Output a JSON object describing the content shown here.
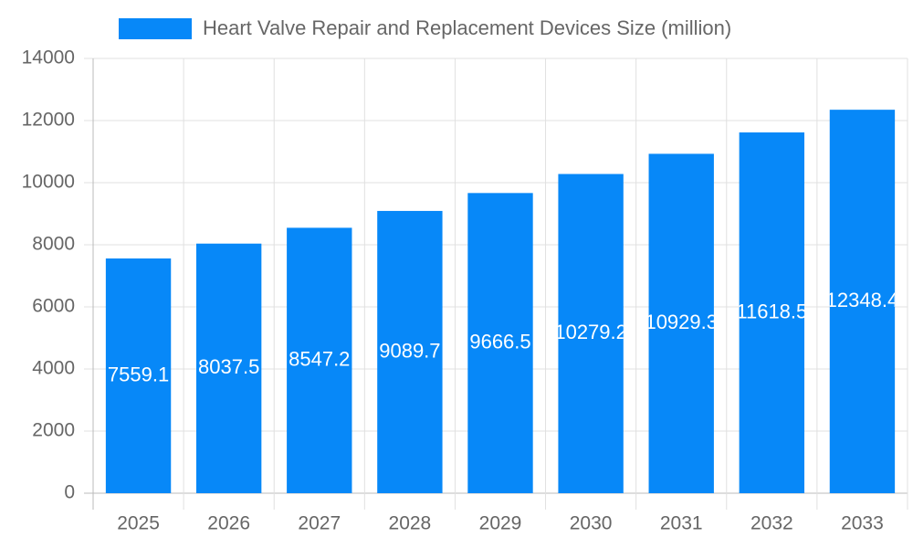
{
  "chart_data": {
    "type": "bar",
    "categories": [
      "2025",
      "2026",
      "2027",
      "2028",
      "2029",
      "2030",
      "2031",
      "2032",
      "2033"
    ],
    "series": [
      {
        "name": "Heart Valve Repair and Replacement Devices Size (million)",
        "color": "#0788f8",
        "values": [
          7559.1,
          8037.5,
          8547.2,
          9089.7,
          9666.5,
          10279.2,
          10929.3,
          11618.5,
          12348.4
        ]
      }
    ],
    "ylim": [
      0,
      14000
    ],
    "yticks": [
      0,
      2000,
      4000,
      6000,
      8000,
      10000,
      12000,
      14000
    ],
    "grid": true
  }
}
